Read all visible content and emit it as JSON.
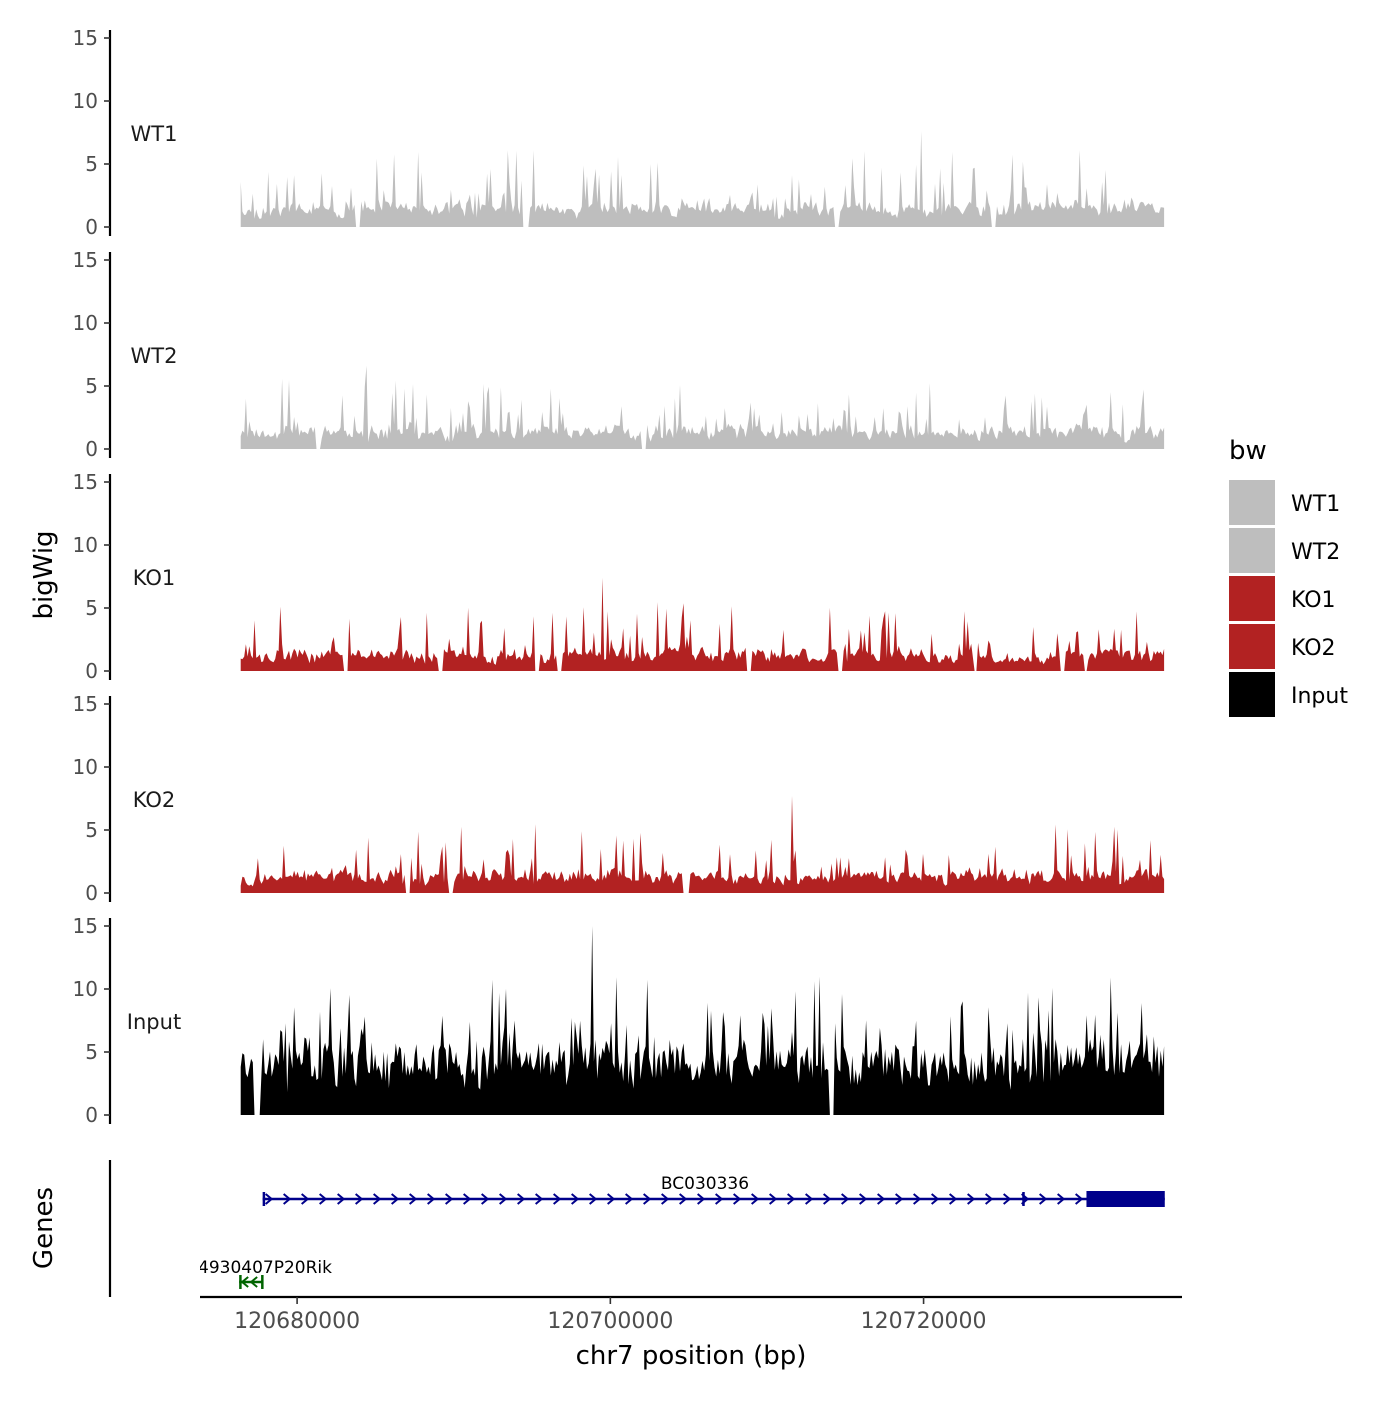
{
  "chart_data": {
    "type": "area",
    "layout": "stacked-tracks",
    "y_axis_title": "bigWig",
    "genes_axis_title": "Genes",
    "x_axis_title": "chr7 position (bp)",
    "xlim": [
      120673800,
      120736500
    ],
    "x_ticks": [
      {
        "value": 120680000,
        "label": "120680000"
      },
      {
        "value": 120700000,
        "label": "120700000"
      },
      {
        "value": 120720000,
        "label": "120720000"
      }
    ],
    "ylim": [
      0,
      15
    ],
    "y_ticks": [
      {
        "value": 0,
        "label": "0"
      },
      {
        "value": 5,
        "label": "5"
      },
      {
        "value": 10,
        "label": "10"
      },
      {
        "value": 15,
        "label": "15"
      }
    ],
    "track_range": [
      120676400,
      120735400
    ],
    "tracks": [
      {
        "name": "WT1",
        "label": "WT1",
        "color": "#bebebe",
        "seed": 11,
        "base": 0.6,
        "bump": 1.8,
        "spike_prob": 0.22,
        "spike": 4.6,
        "max": 7.6,
        "gaps": [
          [
            120683700,
            120684000
          ],
          [
            120694400,
            120694800
          ],
          [
            120714300,
            120714600
          ],
          [
            120724300,
            120724600
          ]
        ]
      },
      {
        "name": "WT2",
        "label": "WT2",
        "color": "#bebebe",
        "seed": 23,
        "base": 0.6,
        "bump": 1.6,
        "spike_prob": 0.22,
        "spike": 4.2,
        "max": 6.6,
        "gaps": [
          [
            120681200,
            120681500
          ],
          [
            120702000,
            120702300
          ]
        ]
      },
      {
        "name": "KO1",
        "label": "KO1",
        "color": "#b22222",
        "seed": 37,
        "base": 0.6,
        "bump": 1.5,
        "spike_prob": 0.22,
        "spike": 4.0,
        "max": 7.4,
        "gaps": [
          [
            120682900,
            120683300
          ],
          [
            120689000,
            120689300
          ],
          [
            120695200,
            120695500
          ],
          [
            120696600,
            120696900
          ],
          [
            120708700,
            120709000
          ],
          [
            120714500,
            120714800
          ],
          [
            120723200,
            120723400
          ],
          [
            120728700,
            120729000
          ],
          [
            120730200,
            120730500
          ]
        ]
      },
      {
        "name": "KO2",
        "label": "KO2",
        "color": "#b22222",
        "seed": 53,
        "base": 0.6,
        "bump": 1.5,
        "spike_prob": 0.22,
        "spike": 4.0,
        "max": 7.7,
        "gaps": [
          [
            120686900,
            120687200
          ],
          [
            120689700,
            120690000
          ],
          [
            120704600,
            120705100
          ]
        ]
      },
      {
        "name": "Input",
        "label": "Input",
        "color": "#000000",
        "seed": 71,
        "base": 3.4,
        "bump": 2.4,
        "spike_prob": 0.28,
        "spike": 6.0,
        "max": 15.0,
        "gaps": [
          [
            120677200,
            120677700
          ],
          [
            120714000,
            120714300
          ]
        ]
      }
    ],
    "legend": {
      "title": "bw",
      "position": "right",
      "entries": [
        {
          "label": "WT1",
          "color": "#bebebe"
        },
        {
          "label": "WT2",
          "color": "#bebebe"
        },
        {
          "label": "KO1",
          "color": "#b22222"
        },
        {
          "label": "KO2",
          "color": "#b22222"
        },
        {
          "label": "Input",
          "color": "#000000"
        }
      ]
    },
    "genes": [
      {
        "name": "BC030336",
        "label": "BC030336",
        "start": 120677800,
        "end": 120735400,
        "strand": "+",
        "color": "#00008b",
        "row": 1,
        "exons": [
          [
            120677800,
            120677950
          ],
          [
            120726300,
            120726450
          ],
          [
            120730400,
            120735400
          ]
        ]
      },
      {
        "name": "4930407P20Rik",
        "label": "4930407P20Rik",
        "start": 120676300,
        "end": 120677800,
        "strand": "-",
        "color": "#006400",
        "row": 2,
        "exons": [
          [
            120676300,
            120676400
          ],
          [
            120677700,
            120677800
          ]
        ]
      }
    ]
  }
}
